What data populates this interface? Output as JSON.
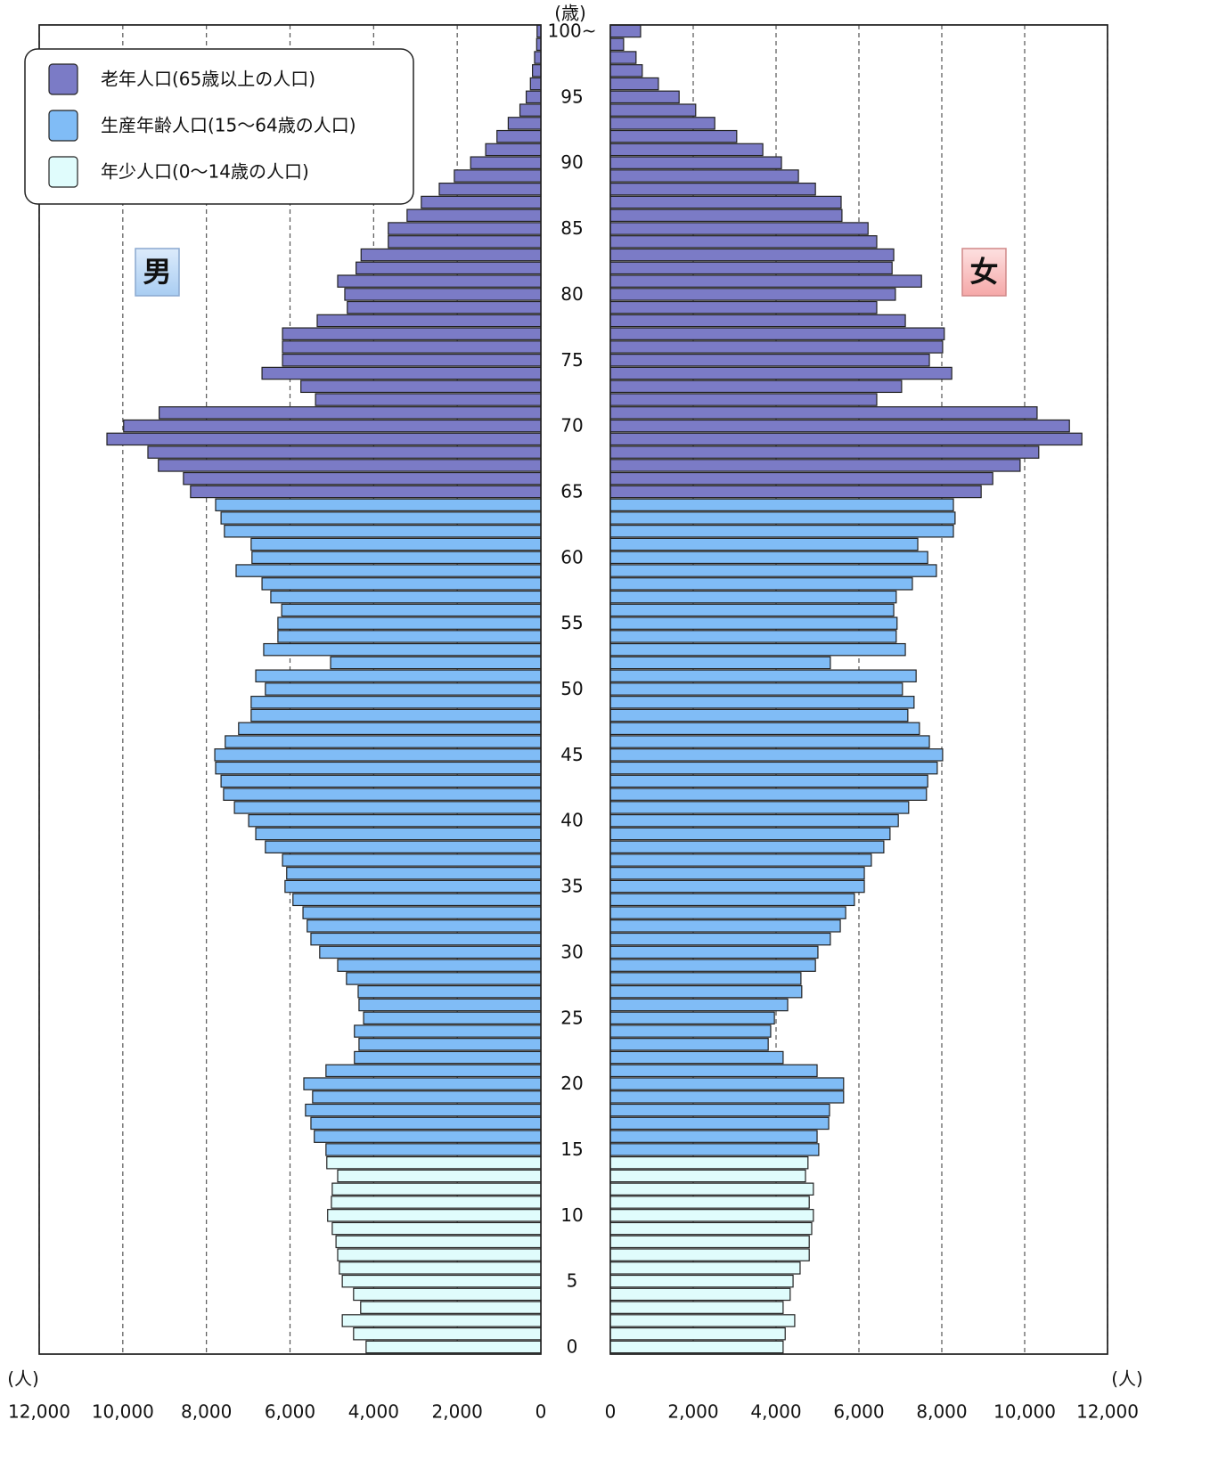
{
  "chart_data": {
    "type": "pyramid",
    "y_unit_label": "(歳)",
    "x_unit_label": "(人)",
    "categories": [
      "0",
      null,
      null,
      null,
      null,
      "5",
      null,
      null,
      null,
      null,
      "10",
      null,
      null,
      null,
      null,
      "15",
      null,
      null,
      null,
      null,
      "20",
      null,
      null,
      null,
      null,
      "25",
      null,
      null,
      null,
      null,
      "30",
      null,
      null,
      null,
      null,
      "35",
      null,
      null,
      null,
      null,
      "40",
      null,
      null,
      null,
      null,
      "45",
      null,
      null,
      null,
      null,
      "50",
      null,
      null,
      null,
      null,
      "55",
      null,
      null,
      null,
      null,
      "60",
      null,
      null,
      null,
      null,
      "65",
      null,
      null,
      null,
      null,
      "70",
      null,
      null,
      null,
      null,
      "75",
      null,
      null,
      null,
      null,
      "80",
      null,
      null,
      null,
      null,
      "85",
      null,
      null,
      null,
      null,
      "90",
      null,
      null,
      null,
      null,
      "95",
      null,
      null,
      null,
      null,
      "100~"
    ],
    "series": [
      {
        "name": "男",
        "side": "left",
        "values": [
          4180,
          4480,
          4750,
          4310,
          4480,
          4750,
          4820,
          4860,
          4900,
          4990,
          5100,
          5010,
          4990,
          4860,
          5120,
          5140,
          5420,
          5500,
          5630,
          5460,
          5670,
          5140,
          4460,
          4350,
          4460,
          4240,
          4350,
          4370,
          4650,
          4860,
          5290,
          5500,
          5590,
          5690,
          5930,
          6120,
          6080,
          6180,
          6590,
          6820,
          6990,
          7330,
          7590,
          7650,
          7780,
          7800,
          7550,
          7230,
          6930,
          6930,
          6590,
          6820,
          5030,
          6630,
          6290,
          6290,
          6200,
          6460,
          6670,
          7290,
          6910,
          6930,
          7570,
          7650,
          7780,
          8380,
          8550,
          9150,
          9400,
          10380,
          9980,
          9130,
          5390,
          5740,
          6670,
          6180,
          6180,
          6180,
          5350,
          4630,
          4690,
          4860,
          4420,
          4300,
          3650,
          3650,
          3200,
          2860,
          2430,
          2070,
          1680,
          1320,
          1050,
          780,
          500,
          350,
          250,
          200,
          150,
          100,
          90
        ]
      },
      {
        "name": "女",
        "side": "right",
        "values": [
          4170,
          4220,
          4450,
          4170,
          4340,
          4410,
          4580,
          4800,
          4800,
          4860,
          4900,
          4800,
          4900,
          4710,
          4770,
          5030,
          4990,
          5270,
          5290,
          5630,
          5630,
          4990,
          4170,
          3810,
          3870,
          3960,
          4280,
          4620,
          4600,
          4950,
          5010,
          5310,
          5550,
          5680,
          5890,
          6130,
          6130,
          6300,
          6600,
          6750,
          6950,
          7200,
          7630,
          7660,
          7890,
          8020,
          7700,
          7460,
          7180,
          7330,
          7050,
          7380,
          5310,
          7120,
          6900,
          6920,
          6840,
          6900,
          7290,
          7870,
          7660,
          7420,
          8280,
          8320,
          8280,
          8950,
          9230,
          9890,
          10340,
          11380,
          11080,
          10300,
          6430,
          7030,
          8240,
          7700,
          8020,
          8060,
          7120,
          6430,
          6880,
          7510,
          6800,
          6840,
          6430,
          6220,
          5590,
          5570,
          4950,
          4540,
          4130,
          3680,
          3050,
          2520,
          2060,
          1660,
          1160,
          770,
          620,
          320,
          730
        ]
      }
    ],
    "bar_colors": [
      "#e0fcfc",
      "#e0fcfc",
      "#e0fcfc",
      "#e0fcfc",
      "#e0fcfc",
      "#e0fcfc",
      "#e0fcfc",
      "#e0fcfc",
      "#e0fcfc",
      "#e0fcfc",
      "#e0fcfc",
      "#e0fcfc",
      "#e0fcfc",
      "#e0fcfc",
      "#e0fcfc",
      "#80bcf6",
      "#80bcf6",
      "#80bcf6",
      "#80bcf6",
      "#80bcf6",
      "#80bcf6",
      "#80bcf6",
      "#80bcf6",
      "#80bcf6",
      "#80bcf6",
      "#80bcf6",
      "#80bcf6",
      "#80bcf6",
      "#80bcf6",
      "#80bcf6",
      "#80bcf6",
      "#80bcf6",
      "#80bcf6",
      "#80bcf6",
      "#80bcf6",
      "#80bcf6",
      "#80bcf6",
      "#80bcf6",
      "#80bcf6",
      "#80bcf6",
      "#80bcf6",
      "#80bcf6",
      "#80bcf6",
      "#80bcf6",
      "#80bcf6",
      "#80bcf6",
      "#80bcf6",
      "#80bcf6",
      "#80bcf6",
      "#80bcf6",
      "#80bcf6",
      "#80bcf6",
      "#80bcf6",
      "#80bcf6",
      "#80bcf6",
      "#80bcf6",
      "#80bcf6",
      "#80bcf6",
      "#80bcf6",
      "#80bcf6",
      "#80bcf6",
      "#80bcf6",
      "#80bcf6",
      "#80bcf6",
      "#80bcf6",
      "#7b7bc6",
      "#7b7bc6",
      "#7b7bc6",
      "#7b7bc6",
      "#7b7bc6",
      "#7b7bc6",
      "#7b7bc6",
      "#7b7bc6",
      "#7b7bc6",
      "#7b7bc6",
      "#7b7bc6",
      "#7b7bc6",
      "#7b7bc6",
      "#7b7bc6",
      "#7b7bc6",
      "#7b7bc6",
      "#7b7bc6",
      "#7b7bc6",
      "#7b7bc6",
      "#7b7bc6",
      "#7b7bc6",
      "#7b7bc6",
      "#7b7bc6",
      "#7b7bc6",
      "#7b7bc6",
      "#7b7bc6",
      "#7b7bc6",
      "#7b7bc6",
      "#7b7bc6",
      "#7b7bc6",
      "#7b7bc6",
      "#7b7bc6",
      "#7b7bc6",
      "#7b7bc6",
      "#7b7bc6",
      "#7b7bc6"
    ],
    "legend": [
      {
        "label": "老年人口(65歳以上の人口)",
        "color": "#7b7bc6"
      },
      {
        "label": "生産年齢人口(15～64歳の人口)",
        "color": "#80bcf6"
      },
      {
        "label": "年少人口(0～14歳の人口)",
        "color": "#e0fcfc"
      }
    ],
    "xlim": [
      0,
      12000
    ],
    "xticks": [
      0,
      {
        "value": 2000,
        "label": "2,000"
      },
      {
        "value": 4000,
        "label": "4,000"
      },
      {
        "value": 6000,
        "label": "6,000"
      },
      {
        "value": 8000,
        "label": "8,000"
      },
      {
        "value": 10000,
        "label": "10,000"
      },
      {
        "value": 12000,
        "label": "12,000"
      }
    ],
    "grid": true
  }
}
